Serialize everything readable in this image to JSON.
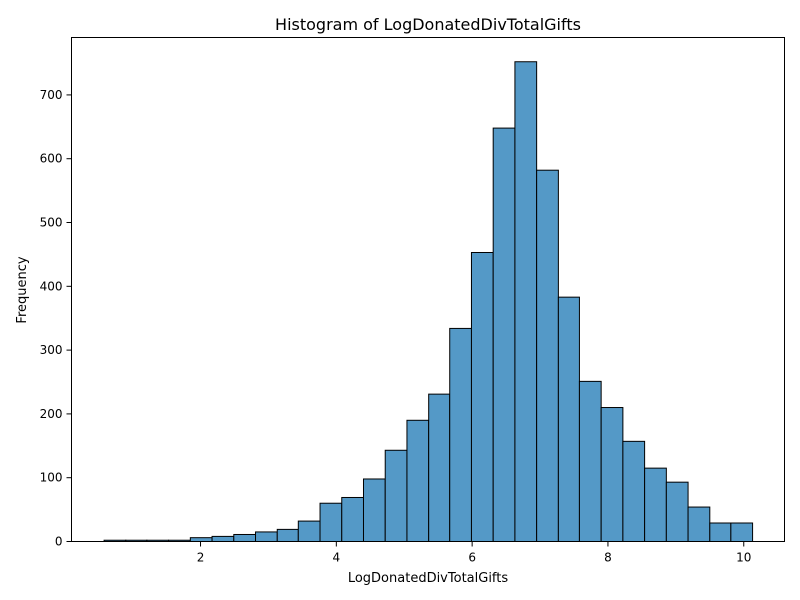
{
  "chart_data": {
    "type": "bar",
    "title": "Histogram of LogDonatedDivTotalGifts",
    "xlabel": "LogDonatedDivTotalGifts",
    "ylabel": "Frequency",
    "xlim": [
      0.1,
      10.6
    ],
    "ylim": [
      0,
      790
    ],
    "xticks": [
      2,
      4,
      6,
      8,
      10
    ],
    "yticks": [
      0,
      100,
      200,
      300,
      400,
      500,
      600,
      700
    ],
    "grid": false,
    "bar_color": "#5499c7",
    "edge_color": "#000000",
    "bins": [
      {
        "start": 0.58,
        "end": 0.9,
        "count": 2
      },
      {
        "start": 0.9,
        "end": 1.21,
        "count": 2
      },
      {
        "start": 1.21,
        "end": 1.53,
        "count": 2
      },
      {
        "start": 1.53,
        "end": 1.85,
        "count": 2
      },
      {
        "start": 1.85,
        "end": 2.17,
        "count": 6
      },
      {
        "start": 2.17,
        "end": 2.49,
        "count": 8
      },
      {
        "start": 2.49,
        "end": 2.81,
        "count": 11
      },
      {
        "start": 2.81,
        "end": 3.13,
        "count": 15
      },
      {
        "start": 3.13,
        "end": 3.44,
        "count": 19
      },
      {
        "start": 3.44,
        "end": 3.76,
        "count": 32
      },
      {
        "start": 3.76,
        "end": 4.08,
        "count": 60
      },
      {
        "start": 4.08,
        "end": 4.4,
        "count": 69
      },
      {
        "start": 4.4,
        "end": 4.72,
        "count": 98
      },
      {
        "start": 4.72,
        "end": 5.04,
        "count": 143
      },
      {
        "start": 5.04,
        "end": 5.36,
        "count": 190
      },
      {
        "start": 5.36,
        "end": 5.67,
        "count": 231
      },
      {
        "start": 5.67,
        "end": 5.99,
        "count": 334
      },
      {
        "start": 5.99,
        "end": 6.31,
        "count": 453
      },
      {
        "start": 6.31,
        "end": 6.63,
        "count": 648
      },
      {
        "start": 6.63,
        "end": 6.95,
        "count": 752
      },
      {
        "start": 6.95,
        "end": 7.27,
        "count": 582
      },
      {
        "start": 7.27,
        "end": 7.58,
        "count": 383
      },
      {
        "start": 7.58,
        "end": 7.9,
        "count": 251
      },
      {
        "start": 7.9,
        "end": 8.22,
        "count": 210
      },
      {
        "start": 8.22,
        "end": 8.54,
        "count": 157
      },
      {
        "start": 8.54,
        "end": 8.86,
        "count": 115
      },
      {
        "start": 8.86,
        "end": 9.18,
        "count": 93
      },
      {
        "start": 9.18,
        "end": 9.5,
        "count": 54
      },
      {
        "start": 9.5,
        "end": 9.81,
        "count": 29
      },
      {
        "start": 9.81,
        "end": 10.13,
        "count": 29
      }
    ]
  }
}
